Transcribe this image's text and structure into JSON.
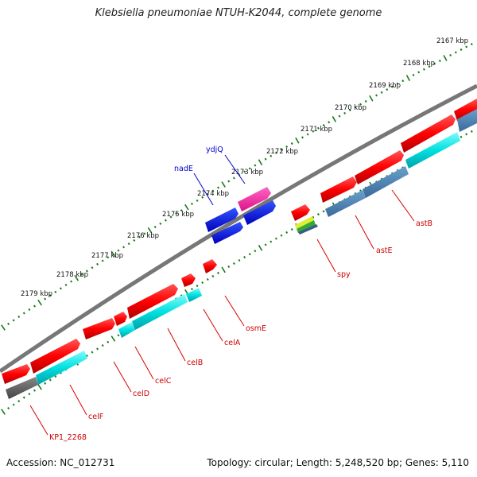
{
  "title": "Klebsiella pneumoniae NTUH-K2044, complete genome",
  "footer": {
    "accession": "Accession: NC_012731",
    "summary": "Topology: circular; Length: 5,248,520 bp; Genes: 5,110"
  },
  "kbp_labels": [
    "2167 kbp",
    "2168 kbp",
    "2169 kbp",
    "2170 kbp",
    "2171 kbp",
    "2172 kbp",
    "2173 kbp",
    "2174 kbp",
    "2175 kbp",
    "2176 kbp",
    "2177 kbp",
    "2178 kbp",
    "2179 kbp"
  ],
  "genes": [
    {
      "name": "astB",
      "color": "#cc0000"
    },
    {
      "name": "astE",
      "color": "#cc0000"
    },
    {
      "name": "spy",
      "color": "#cc0000"
    },
    {
      "name": "osmE",
      "color": "#cc0000"
    },
    {
      "name": "celA",
      "color": "#cc0000"
    },
    {
      "name": "celB",
      "color": "#cc0000"
    },
    {
      "name": "celC",
      "color": "#cc0000"
    },
    {
      "name": "celD",
      "color": "#cc0000"
    },
    {
      "name": "celF",
      "color": "#cc0000"
    },
    {
      "name": "KP1_2268",
      "color": "#cc0000"
    },
    {
      "name": "nadE",
      "color": "#0000cc"
    },
    {
      "name": "ydjQ",
      "color": "#0000cc"
    }
  ],
  "colors": {
    "forward_gene": "#ff0000",
    "cds": "#00e5e5",
    "cds_alt": "#4a82b4",
    "reverse_gene": "#0000ee",
    "reverse_gene_alt": "#ff33aa",
    "backbone": "#808080",
    "tick": "#1a7a1a"
  }
}
